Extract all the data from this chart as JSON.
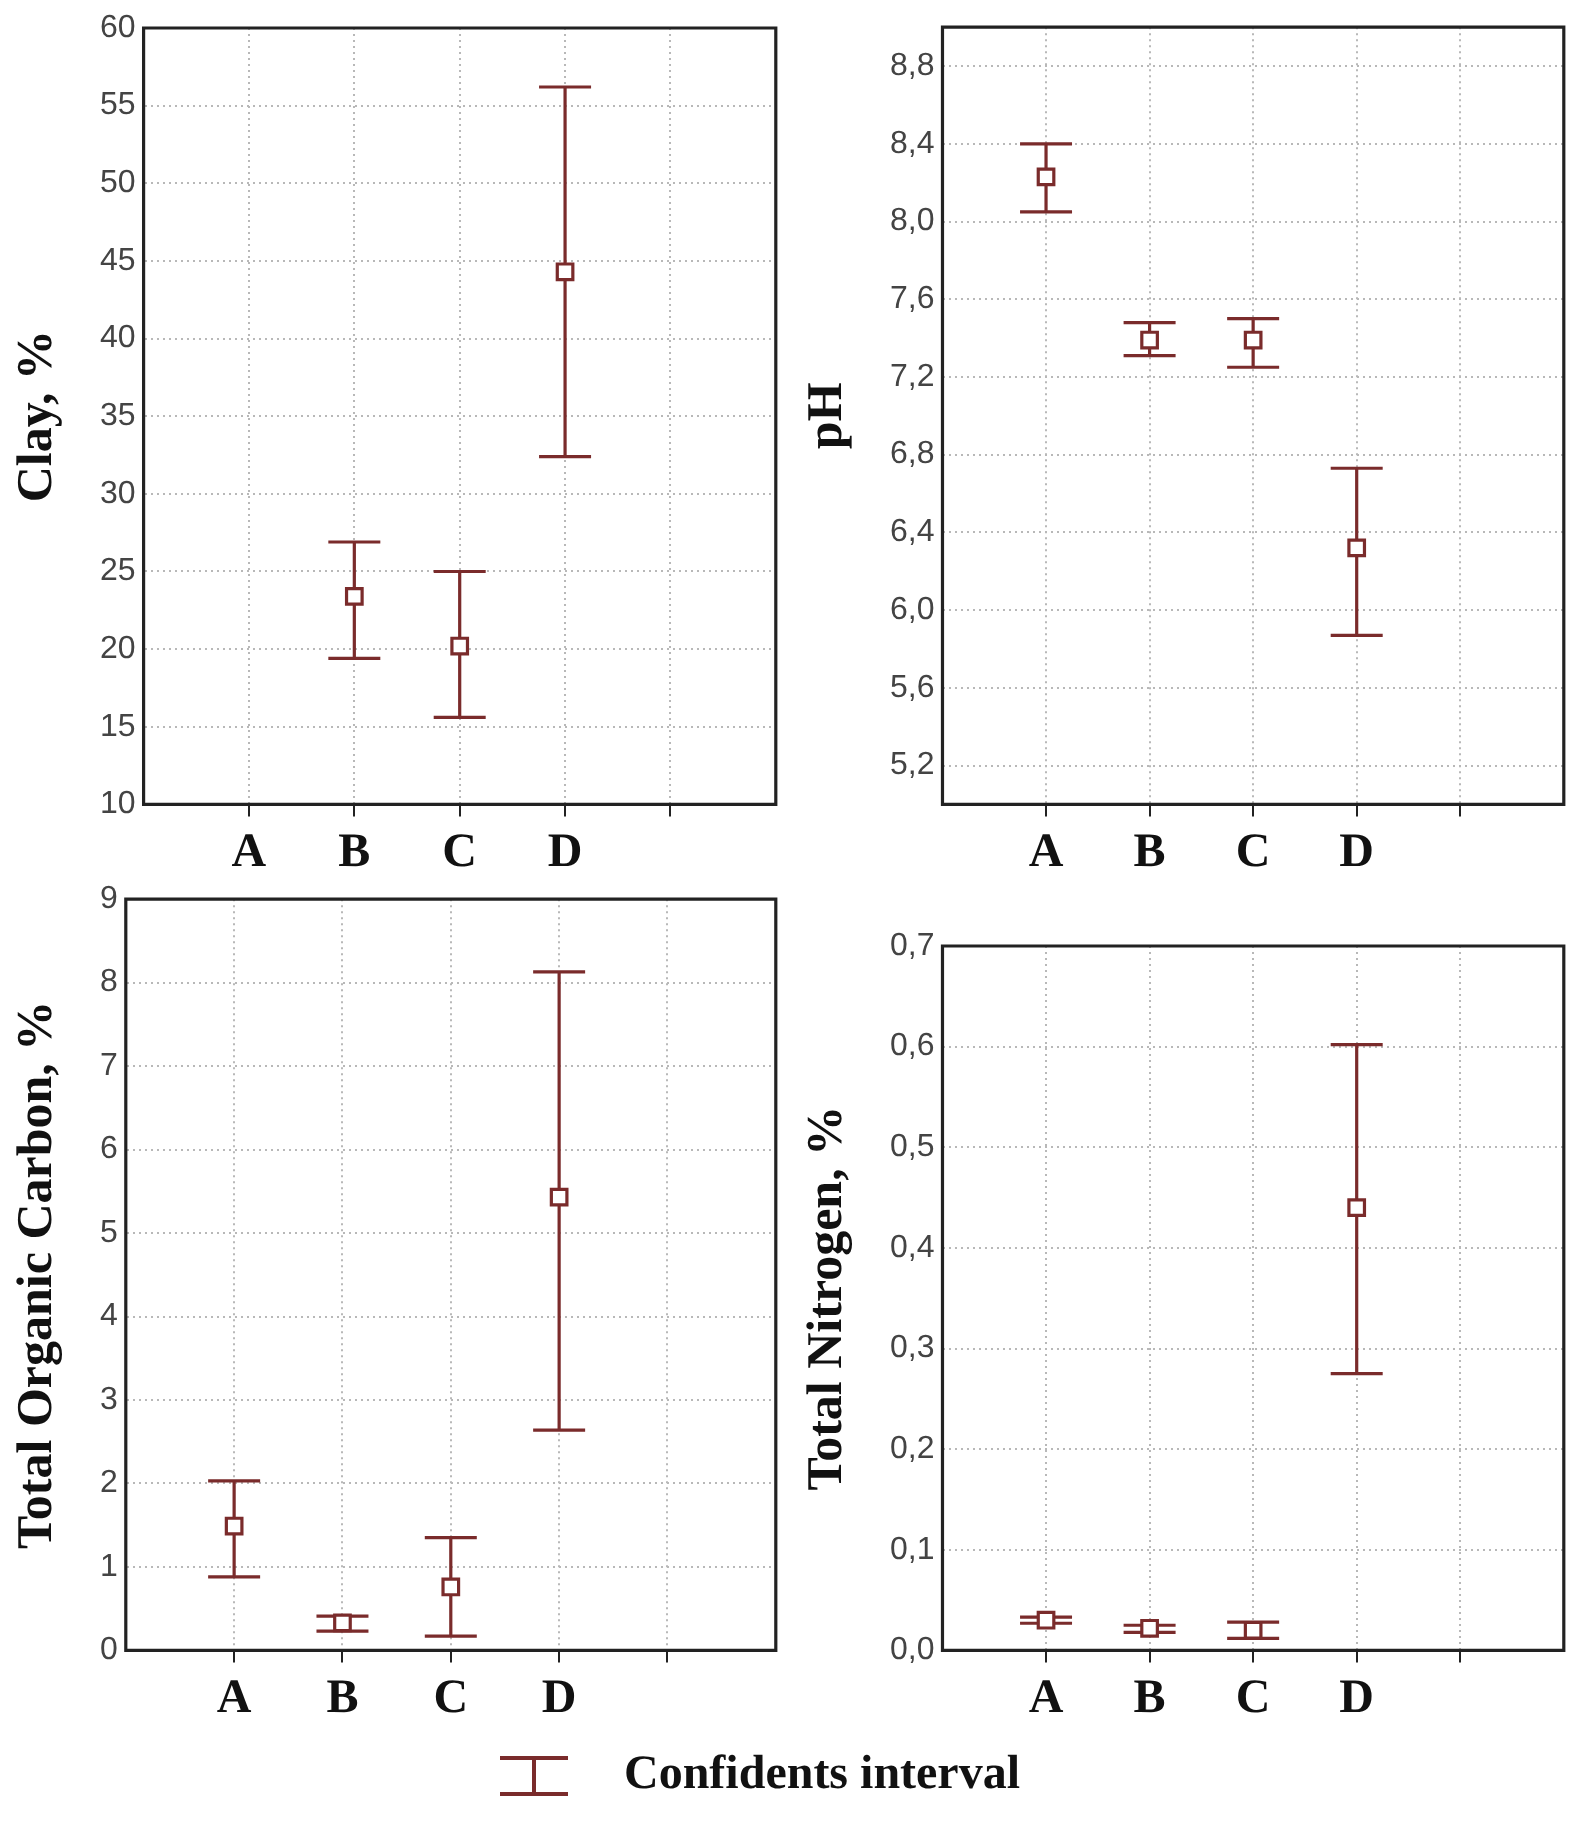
{
  "chart_data": [
    {
      "type": "scatter",
      "ylabel": "Clay, %",
      "categories": [
        "A",
        "B",
        "C",
        "D",
        null
      ],
      "marker": "square",
      "grid": true,
      "series": [
        {
          "color": "#7a2b2b",
          "values": [
            null,
            23.4,
            20.2,
            44.3,
            null
          ],
          "errors": [
            null,
            [
              19.4,
              26.9
            ],
            [
              15.6,
              25.0
            ],
            [
              32.4,
              56.2
            ],
            null
          ]
        }
      ],
      "ylim": [
        10,
        60
      ],
      "yticks": [
        10,
        15,
        20,
        25,
        30,
        35,
        40,
        45,
        50,
        55,
        60
      ]
    },
    {
      "type": "scatter",
      "ylabel": "pH",
      "categories": [
        "A",
        "B",
        "C",
        "D",
        null
      ],
      "marker": "square",
      "grid": true,
      "series": [
        {
          "color": "#7a2b2b",
          "values": [
            8.23,
            7.39,
            7.39,
            6.32,
            null
          ],
          "errors": [
            [
              8.05,
              8.4
            ],
            [
              7.31,
              7.48
            ],
            [
              7.25,
              7.5
            ],
            [
              5.87,
              6.73
            ],
            null
          ]
        }
      ],
      "ylim": [
        5.0,
        9.0
      ],
      "yticks": [
        {
          "value": 5.2,
          "label": "5,2"
        },
        {
          "value": 5.6,
          "label": "5,6"
        },
        {
          "value": 6.0,
          "label": "6,0"
        },
        {
          "value": 6.4,
          "label": "6,4"
        },
        {
          "value": 6.8,
          "label": "6,8"
        },
        {
          "value": 7.2,
          "label": "7,2"
        },
        {
          "value": 7.6,
          "label": "7,6"
        },
        {
          "value": 8.0,
          "label": "8,0"
        },
        {
          "value": 8.4,
          "label": "8,4"
        },
        {
          "value": 8.8,
          "label": "8,8"
        }
      ]
    },
    {
      "type": "scatter",
      "ylabel": "Total Organic Carbon, %",
      "categories": [
        "A",
        "B",
        "C",
        "D",
        null
      ],
      "marker": "square",
      "grid": true,
      "series": [
        {
          "color": "#7a2b2b",
          "values": [
            1.49,
            0.33,
            0.76,
            5.43,
            null
          ],
          "errors": [
            [
              0.88,
              2.03
            ],
            [
              0.23,
              0.41
            ],
            [
              0.17,
              1.35
            ],
            [
              2.64,
              8.13
            ],
            null
          ]
        }
      ],
      "ylim": [
        0,
        9
      ],
      "yticks": [
        0,
        1,
        2,
        3,
        4,
        5,
        6,
        7,
        8,
        9
      ]
    },
    {
      "type": "scatter",
      "ylabel": "Total Nitrogen, %",
      "categories": [
        "A",
        "B",
        "C",
        "D",
        null
      ],
      "marker": "square",
      "grid": true,
      "series": [
        {
          "color": "#7a2b2b",
          "values": [
            0.03,
            0.022,
            0.02,
            0.44,
            null
          ],
          "errors": [
            [
              0.027,
              0.033
            ],
            [
              0.018,
              0.025
            ],
            [
              0.012,
              0.028
            ],
            [
              0.275,
              0.602
            ],
            null
          ]
        }
      ],
      "ylim": [
        0,
        0.7
      ],
      "yticks": [
        {
          "value": 0,
          "label": "0,0"
        },
        {
          "value": 0.1,
          "label": "0,1"
        },
        {
          "value": 0.2,
          "label": "0,2"
        },
        {
          "value": 0.3,
          "label": "0,3"
        },
        {
          "value": 0.4,
          "label": "0,4"
        },
        {
          "value": 0.5,
          "label": "0,5"
        },
        {
          "value": 0.6,
          "label": "0,6"
        },
        {
          "value": 0.7,
          "label": "0,7"
        }
      ],
      "annotations": [
        "Confidents interval"
      ]
    }
  ]
}
